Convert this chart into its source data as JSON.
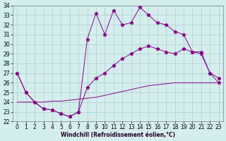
{
  "xlabel": "Windchill (Refroidissement éolien,°C)",
  "ylabel": "",
  "xlim": [
    -0.5,
    23.5
  ],
  "ylim": [
    22,
    34
  ],
  "yticks": [
    22,
    23,
    24,
    25,
    26,
    27,
    28,
    29,
    30,
    31,
    32,
    33,
    34
  ],
  "xticks": [
    0,
    1,
    2,
    3,
    4,
    5,
    6,
    7,
    8,
    9,
    10,
    11,
    12,
    13,
    14,
    15,
    16,
    17,
    18,
    19,
    20,
    21,
    22,
    23
  ],
  "background_color": "#d4eeee",
  "line_color": "#880088",
  "grid_color": "#aacccc",
  "line1_x": [
    0,
    1,
    2,
    3,
    4,
    5,
    6,
    7,
    8,
    9,
    10,
    11,
    12,
    13,
    14,
    15,
    16,
    17,
    18,
    19,
    20,
    21,
    22,
    23
  ],
  "line1_y": [
    27.0,
    25.0,
    24.0,
    23.3,
    23.2,
    22.8,
    22.5,
    23.0,
    30.5,
    33.2,
    31.0,
    33.5,
    32.0,
    32.2,
    33.8,
    33.0,
    32.2,
    32.0,
    31.3,
    31.0,
    29.2,
    29.0,
    27.0,
    26.0
  ],
  "line2_x": [
    0,
    1,
    2,
    3,
    4,
    5,
    6,
    7,
    8,
    9,
    10,
    11,
    12,
    13,
    14,
    15,
    16,
    17,
    18,
    19,
    20,
    21,
    22,
    23
  ],
  "line2_y": [
    27.0,
    25.0,
    24.0,
    23.3,
    23.2,
    22.8,
    22.5,
    23.0,
    25.5,
    26.5,
    27.0,
    27.8,
    28.5,
    29.0,
    29.5,
    29.8,
    29.5,
    29.2,
    29.0,
    29.5,
    29.2,
    29.2,
    27.0,
    26.5
  ],
  "line3_x": [
    0,
    1,
    2,
    3,
    4,
    5,
    6,
    7,
    8,
    9,
    10,
    11,
    12,
    13,
    14,
    15,
    16,
    17,
    18,
    19,
    20,
    21,
    22,
    23
  ],
  "line3_y": [
    24.0,
    24.0,
    24.0,
    24.0,
    24.1,
    24.1,
    24.2,
    24.3,
    24.4,
    24.5,
    24.7,
    24.9,
    25.1,
    25.3,
    25.5,
    25.7,
    25.8,
    25.9,
    26.0,
    26.0,
    26.0,
    26.0,
    26.0,
    26.0
  ]
}
